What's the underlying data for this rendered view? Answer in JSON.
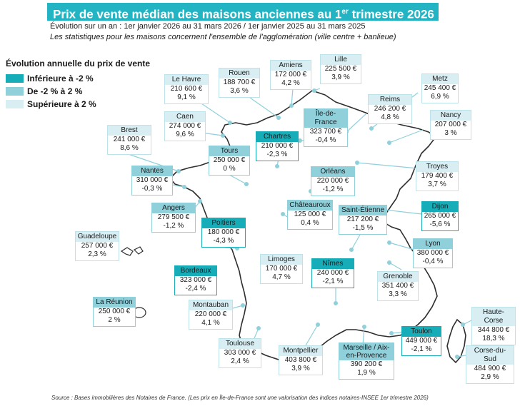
{
  "title_main": "Prix de vente médian des maisons anciennes au 1",
  "title_sup": "er",
  "title_end": " trimestre 2026",
  "subtitle_1": "Évolution sur un an : 1er janvier 2026 au 31 mars 2026 / 1er janvier 2025 au 31 mars 2025",
  "subtitle_2": "Les statistiques pour les maisons concernent l'ensemble de l'agglomération (ville centre + banlieue)",
  "legend": {
    "title": "Évolution annuelle du prix de vente",
    "items": [
      {
        "label": "Inférieure à -2 %",
        "color": "#17adb8"
      },
      {
        "label": "De -2 % à 2 %",
        "color": "#8fd0db"
      },
      {
        "label": "Supérieure à 2 %",
        "color": "#d8eef3"
      }
    ]
  },
  "colors": {
    "low": "#17adb8",
    "mid": "#8fd0db",
    "high": "#d8eef3",
    "map_line": "#2e2e2e",
    "leader": "#8fd0db"
  },
  "cities": [
    {
      "name": "Lille",
      "price": "225 500 €",
      "var": "3,9 %",
      "cls": "high"
    },
    {
      "name": "Amiens",
      "price": "172 000 €",
      "var": "4,2 %",
      "cls": "high"
    },
    {
      "name": "Rouen",
      "price": "188 700 €",
      "var": "3,6 %",
      "cls": "high"
    },
    {
      "name": "Le Havre",
      "price": "210 600 €",
      "var": "9,1 %",
      "cls": "high"
    },
    {
      "name": "Metz",
      "price": "245 400 €",
      "var": "6,9 %",
      "cls": "high"
    },
    {
      "name": "Reims",
      "price": "246 200 €",
      "var": "4,8 %",
      "cls": "high"
    },
    {
      "name": "Île-de-France",
      "price": "323 700 €",
      "var": "-0,4 %",
      "cls": "mid"
    },
    {
      "name": "Nancy",
      "price": "207 000 €",
      "var": "3 %",
      "cls": "high"
    },
    {
      "name": "Caen",
      "price": "274 000 €",
      "var": "9,6 %",
      "cls": "high"
    },
    {
      "name": "Brest",
      "price": "241 000 €",
      "var": "8,6 %",
      "cls": "high"
    },
    {
      "name": "Chartres",
      "price": "210 000 €",
      "var": "-2,3 %",
      "cls": "low"
    },
    {
      "name": "Tours",
      "price": "250 000 €",
      "var": "0 %",
      "cls": "mid"
    },
    {
      "name": "Troyes",
      "price": "179 400 €",
      "var": "3,7 %",
      "cls": "high"
    },
    {
      "name": "Nantes",
      "price": "310 000 €",
      "var": "-0,3 %",
      "cls": "mid"
    },
    {
      "name": "Orléans",
      "price": "220 000 €",
      "var": "-1,2 %",
      "cls": "mid"
    },
    {
      "name": "Angers",
      "price": "279 500 €",
      "var": "-1,2 %",
      "cls": "mid"
    },
    {
      "name": "Châteauroux",
      "price": "125 000 €",
      "var": "0,4 %",
      "cls": "mid"
    },
    {
      "name": "Saint-Étienne",
      "price": "217 200 €",
      "var": "-1,5 %",
      "cls": "mid"
    },
    {
      "name": "Dijon",
      "price": "265 000 €",
      "var": "-5,6 %",
      "cls": "low"
    },
    {
      "name": "Poitiers",
      "price": "180 000 €",
      "var": "-4,3 %",
      "cls": "low"
    },
    {
      "name": "Guadeloupe",
      "price": "257 000 €",
      "var": "2,3 %",
      "cls": "high"
    },
    {
      "name": "Lyon",
      "price": "380 000 €",
      "var": "-0,4 %",
      "cls": "mid"
    },
    {
      "name": "Limoges",
      "price": "170 000 €",
      "var": "4,7 %",
      "cls": "high"
    },
    {
      "name": "Bordeaux",
      "price": "323 000 €",
      "var": "-2,4 %",
      "cls": "low"
    },
    {
      "name": "Nîmes",
      "price": "240 000 €",
      "var": "-2,1 %",
      "cls": "low"
    },
    {
      "name": "Grenoble",
      "price": "351 400 €",
      "var": "3,3 %",
      "cls": "high"
    },
    {
      "name": "La Réunion",
      "price": "250 000 €",
      "var": "2 %",
      "cls": "mid"
    },
    {
      "name": "Montauban",
      "price": "220 000 €",
      "var": "4,1 %",
      "cls": "high"
    },
    {
      "name": "Haute-Corse",
      "price": "344 800 €",
      "var": "18,3 %",
      "cls": "high"
    },
    {
      "name": "Toulon",
      "price": "449 000 €",
      "var": "-2,1 %",
      "cls": "low"
    },
    {
      "name": "Toulouse",
      "price": "303 000 €",
      "var": "2,4 %",
      "cls": "high"
    },
    {
      "name": "Montpellier",
      "price": "403 800 €",
      "var": "3,9 %",
      "cls": "high"
    },
    {
      "name": "Marseille / Aix-en-Provence",
      "price": "390 200 €",
      "var": "1,9 %",
      "cls": "mid"
    },
    {
      "name": "Corse-du-Sud",
      "price": "484 900 €",
      "var": "2,9 %",
      "cls": "high"
    }
  ],
  "source": "Source : Bases immobilières des Notaires de France. (Les prix en Île-de-France sont une valorisation des indices notaires-INSEE 1er trimestre 2026)"
}
